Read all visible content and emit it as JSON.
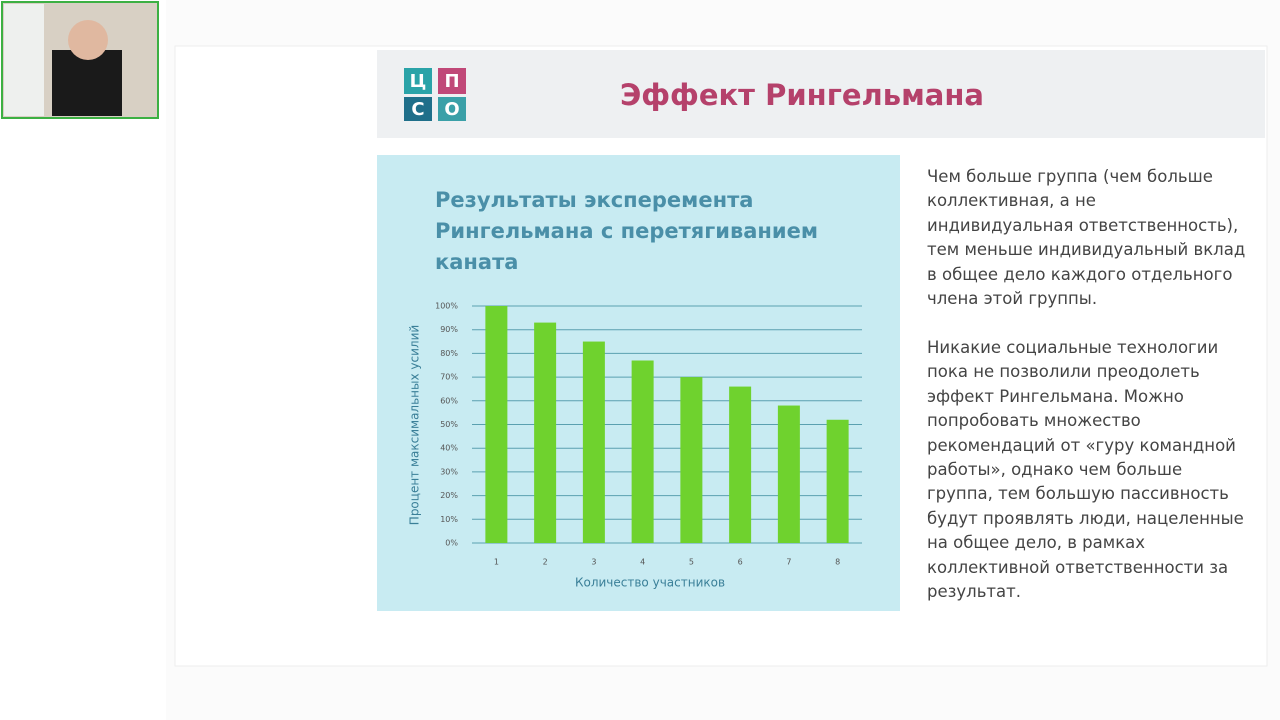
{
  "slide": {
    "title": "Эффект Рингельмана",
    "logo": [
      "Ц",
      "П",
      "С",
      "О"
    ],
    "paragraphs": [
      "Чем больше группа (чем больше коллективная, а не индивидуальная ответственность), тем меньше индивидуальный вклад в общее дело каждого отдельного члена этой группы.",
      "Никакие социальные технологии пока не позволили преодолеть эффект Рингельмана. Можно попробовать множество рекомендаций от «гуру командной работы», однако чем больше группа, тем большую пассивность будут проявлять люди, нацеленные на общее дело, в рамках коллективной ответственности за результат."
    ]
  },
  "chart_data": {
    "type": "bar",
    "title": "Результаты эксперемента Рингельмана с перетягиванием каната",
    "x_label": "Количество участников",
    "y_label": "Процент максимальных усилий",
    "categories": [
      "1",
      "2",
      "3",
      "4",
      "5",
      "6",
      "7",
      "8"
    ],
    "values": [
      100,
      93,
      85,
      77,
      70,
      66,
      58,
      52
    ],
    "color": "#6fd22e",
    "ylim": [
      0,
      100
    ],
    "yticks": [
      {
        "value": 0,
        "label": "0%"
      },
      {
        "value": 10,
        "label": "10%"
      },
      {
        "value": 20,
        "label": "20%"
      },
      {
        "value": 30,
        "label": "30%"
      },
      {
        "value": 40,
        "label": "40%"
      },
      {
        "value": 50,
        "label": "50%"
      },
      {
        "value": 60,
        "label": "60%"
      },
      {
        "value": 70,
        "label": "70%"
      },
      {
        "value": 80,
        "label": "80%"
      },
      {
        "value": 90,
        "label": "90%"
      },
      {
        "value": 100,
        "label": "100%"
      }
    ],
    "grid": true
  }
}
